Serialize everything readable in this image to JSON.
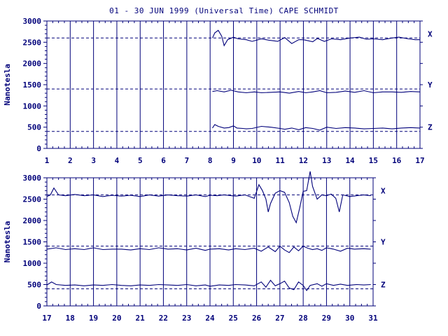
{
  "title": "01 - 30 JUN 1999 (Universal Time) CAPE SCHMIDT",
  "colors": {
    "ink": "#00007a",
    "background": "#ffffff"
  },
  "chart_data": [
    {
      "type": "line",
      "ylabel": "Nanotesla",
      "xlim": [
        1,
        17
      ],
      "ylim": [
        0,
        3000
      ],
      "x_ticks": [
        "1",
        "2",
        "3",
        "4",
        "5",
        "6",
        "7",
        "8",
        "9",
        "10",
        "11",
        "12",
        "13",
        "14",
        "15",
        "16",
        "17"
      ],
      "y_ticks": [
        "0",
        "500",
        "1000",
        "1500",
        "2000",
        "2500",
        "3000"
      ],
      "grid": "vertical lines at each day",
      "baselines": [
        2600,
        1400,
        400
      ],
      "series": [
        {
          "name": "X",
          "points": [
            [
              8.1,
              2600
            ],
            [
              8.2,
              2720
            ],
            [
              8.35,
              2780
            ],
            [
              8.5,
              2640
            ],
            [
              8.6,
              2420
            ],
            [
              8.75,
              2560
            ],
            [
              9.0,
              2620
            ],
            [
              9.2,
              2580
            ],
            [
              9.55,
              2560
            ],
            [
              9.8,
              2520
            ],
            [
              10.2,
              2580
            ],
            [
              10.5,
              2550
            ],
            [
              10.9,
              2520
            ],
            [
              11.2,
              2610
            ],
            [
              11.5,
              2470
            ],
            [
              11.8,
              2560
            ],
            [
              12.0,
              2560
            ],
            [
              12.4,
              2510
            ],
            [
              12.6,
              2590
            ],
            [
              12.9,
              2520
            ],
            [
              13.2,
              2580
            ],
            [
              13.6,
              2560
            ],
            [
              14.0,
              2600
            ],
            [
              14.4,
              2620
            ],
            [
              14.7,
              2570
            ],
            [
              15.0,
              2580
            ],
            [
              15.4,
              2560
            ],
            [
              15.8,
              2600
            ],
            [
              16.1,
              2620
            ],
            [
              16.5,
              2580
            ],
            [
              16.8,
              2560
            ],
            [
              17.0,
              2560
            ]
          ]
        },
        {
          "name": "Y",
          "points": [
            [
              8.1,
              1340
            ],
            [
              8.3,
              1360
            ],
            [
              8.6,
              1330
            ],
            [
              8.9,
              1370
            ],
            [
              9.2,
              1330
            ],
            [
              9.55,
              1310
            ],
            [
              9.9,
              1330
            ],
            [
              10.2,
              1310
            ],
            [
              10.6,
              1320
            ],
            [
              11.0,
              1330
            ],
            [
              11.4,
              1300
            ],
            [
              11.8,
              1340
            ],
            [
              12.1,
              1310
            ],
            [
              12.4,
              1330
            ],
            [
              12.7,
              1360
            ],
            [
              13.0,
              1310
            ],
            [
              13.4,
              1320
            ],
            [
              13.8,
              1350
            ],
            [
              14.2,
              1320
            ],
            [
              14.6,
              1360
            ],
            [
              15.0,
              1310
            ],
            [
              15.4,
              1330
            ],
            [
              15.8,
              1330
            ],
            [
              16.2,
              1320
            ],
            [
              16.6,
              1340
            ],
            [
              17.0,
              1330
            ]
          ]
        },
        {
          "name": "Z",
          "points": [
            [
              8.1,
              480
            ],
            [
              8.2,
              560
            ],
            [
              8.35,
              520
            ],
            [
              8.6,
              480
            ],
            [
              8.8,
              490
            ],
            [
              9.0,
              530
            ],
            [
              9.15,
              480
            ],
            [
              9.4,
              470
            ],
            [
              9.55,
              460
            ],
            [
              9.8,
              470
            ],
            [
              10.2,
              520
            ],
            [
              10.6,
              500
            ],
            [
              11.0,
              470
            ],
            [
              11.2,
              450
            ],
            [
              11.5,
              480
            ],
            [
              11.8,
              440
            ],
            [
              12.1,
              490
            ],
            [
              12.4,
              470
            ],
            [
              12.7,
              430
            ],
            [
              13.0,
              500
            ],
            [
              13.4,
              470
            ],
            [
              13.8,
              490
            ],
            [
              14.2,
              480
            ],
            [
              14.6,
              460
            ],
            [
              15.0,
              470
            ],
            [
              15.4,
              480
            ],
            [
              15.8,
              460
            ],
            [
              16.2,
              480
            ],
            [
              16.6,
              490
            ],
            [
              17.0,
              480
            ]
          ]
        }
      ]
    },
    {
      "type": "line",
      "ylabel": "Nanotesla",
      "xlim": [
        17,
        31
      ],
      "ylim": [
        0,
        3000
      ],
      "x_ticks": [
        "17",
        "18",
        "19",
        "20",
        "21",
        "22",
        "23",
        "24",
        "25",
        "26",
        "27",
        "28",
        "29",
        "30",
        "31"
      ],
      "y_ticks": [
        "0",
        "500",
        "1000",
        "1500",
        "2000",
        "2500",
        "3000"
      ],
      "grid": "vertical lines at each day",
      "baselines": [
        2600,
        1400,
        400
      ],
      "series": [
        {
          "name": "X",
          "points": [
            [
              17.0,
              2560
            ],
            [
              17.15,
              2600
            ],
            [
              17.3,
              2760
            ],
            [
              17.5,
              2600
            ],
            [
              17.8,
              2580
            ],
            [
              18.2,
              2610
            ],
            [
              18.6,
              2580
            ],
            [
              19.0,
              2600
            ],
            [
              19.4,
              2560
            ],
            [
              19.8,
              2590
            ],
            [
              20.2,
              2570
            ],
            [
              20.6,
              2590
            ],
            [
              21.0,
              2560
            ],
            [
              21.4,
              2600
            ],
            [
              21.8,
              2570
            ],
            [
              22.2,
              2600
            ],
            [
              22.6,
              2580
            ],
            [
              23.0,
              2570
            ],
            [
              23.4,
              2600
            ],
            [
              23.8,
              2560
            ],
            [
              24.0,
              2590
            ],
            [
              24.3,
              2580
            ],
            [
              24.6,
              2600
            ],
            [
              25.1,
              2570
            ],
            [
              25.5,
              2600
            ],
            [
              25.9,
              2520
            ],
            [
              26.1,
              2840
            ],
            [
              26.25,
              2700
            ],
            [
              26.4,
              2500
            ],
            [
              26.5,
              2200
            ],
            [
              26.6,
              2400
            ],
            [
              26.8,
              2640
            ],
            [
              27.0,
              2700
            ],
            [
              27.2,
              2660
            ],
            [
              27.4,
              2420
            ],
            [
              27.55,
              2100
            ],
            [
              27.7,
              1950
            ],
            [
              27.85,
              2300
            ],
            [
              28.0,
              2680
            ],
            [
              28.15,
              2700
            ],
            [
              28.3,
              3150
            ],
            [
              28.4,
              2800
            ],
            [
              28.6,
              2500
            ],
            [
              28.8,
              2600
            ],
            [
              29.0,
              2580
            ],
            [
              29.2,
              2620
            ],
            [
              29.4,
              2520
            ],
            [
              29.55,
              2200
            ],
            [
              29.7,
              2600
            ],
            [
              30.0,
              2560
            ],
            [
              30.3,
              2580
            ],
            [
              30.6,
              2600
            ],
            [
              30.9,
              2580
            ]
          ]
        },
        {
          "name": "Y",
          "points": [
            [
              17.0,
              1330
            ],
            [
              17.4,
              1360
            ],
            [
              17.8,
              1320
            ],
            [
              18.2,
              1340
            ],
            [
              18.6,
              1320
            ],
            [
              19.0,
              1360
            ],
            [
              19.4,
              1320
            ],
            [
              19.8,
              1330
            ],
            [
              20.2,
              1330
            ],
            [
              20.6,
              1310
            ],
            [
              21.0,
              1340
            ],
            [
              21.4,
              1320
            ],
            [
              21.8,
              1360
            ],
            [
              22.2,
              1330
            ],
            [
              22.6,
              1340
            ],
            [
              23.0,
              1310
            ],
            [
              23.4,
              1350
            ],
            [
              23.8,
              1300
            ],
            [
              24.0,
              1330
            ],
            [
              24.4,
              1340
            ],
            [
              24.8,
              1310
            ],
            [
              25.1,
              1340
            ],
            [
              25.5,
              1320
            ],
            [
              25.9,
              1350
            ],
            [
              26.2,
              1280
            ],
            [
              26.5,
              1380
            ],
            [
              26.8,
              1270
            ],
            [
              27.0,
              1400
            ],
            [
              27.2,
              1310
            ],
            [
              27.4,
              1250
            ],
            [
              27.6,
              1380
            ],
            [
              27.8,
              1290
            ],
            [
              28.0,
              1400
            ],
            [
              28.2,
              1350
            ],
            [
              28.4,
              1320
            ],
            [
              28.6,
              1340
            ],
            [
              28.8,
              1300
            ],
            [
              29.0,
              1360
            ],
            [
              29.3,
              1330
            ],
            [
              29.6,
              1280
            ],
            [
              29.9,
              1350
            ],
            [
              30.2,
              1330
            ],
            [
              30.6,
              1340
            ],
            [
              30.9,
              1330
            ]
          ]
        },
        {
          "name": "Z",
          "points": [
            [
              17.0,
              490
            ],
            [
              17.2,
              560
            ],
            [
              17.4,
              500
            ],
            [
              17.8,
              480
            ],
            [
              18.2,
              490
            ],
            [
              18.6,
              470
            ],
            [
              19.0,
              490
            ],
            [
              19.4,
              480
            ],
            [
              19.8,
              500
            ],
            [
              20.2,
              480
            ],
            [
              20.6,
              470
            ],
            [
              21.0,
              490
            ],
            [
              21.4,
              480
            ],
            [
              21.8,
              500
            ],
            [
              22.2,
              490
            ],
            [
              22.6,
              480
            ],
            [
              23.0,
              500
            ],
            [
              23.4,
              470
            ],
            [
              23.8,
              490
            ],
            [
              24.0,
              460
            ],
            [
              24.4,
              490
            ],
            [
              24.8,
              480
            ],
            [
              25.1,
              500
            ],
            [
              25.5,
              490
            ],
            [
              25.9,
              470
            ],
            [
              26.2,
              560
            ],
            [
              26.4,
              440
            ],
            [
              26.6,
              600
            ],
            [
              26.8,
              470
            ],
            [
              27.0,
              520
            ],
            [
              27.2,
              580
            ],
            [
              27.4,
              420
            ],
            [
              27.6,
              380
            ],
            [
              27.8,
              560
            ],
            [
              28.0,
              480
            ],
            [
              28.15,
              360
            ],
            [
              28.3,
              480
            ],
            [
              28.6,
              520
            ],
            [
              28.8,
              460
            ],
            [
              29.0,
              520
            ],
            [
              29.3,
              480
            ],
            [
              29.6,
              510
            ],
            [
              29.9,
              480
            ],
            [
              30.3,
              500
            ],
            [
              30.6,
              490
            ],
            [
              30.9,
              500
            ]
          ]
        }
      ]
    }
  ]
}
